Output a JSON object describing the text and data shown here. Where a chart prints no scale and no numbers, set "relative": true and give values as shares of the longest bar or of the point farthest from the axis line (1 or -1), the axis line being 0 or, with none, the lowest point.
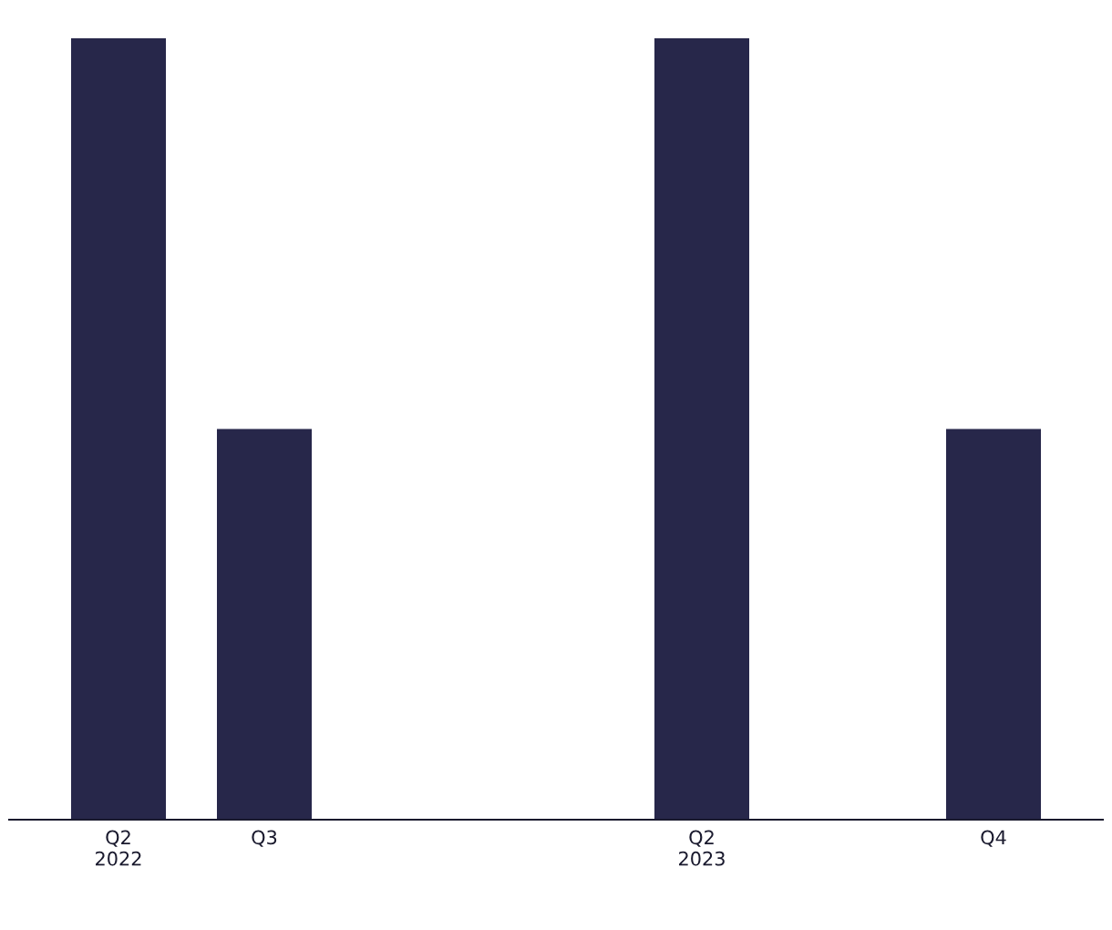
{
  "chart_data": {
    "type": "bar",
    "relative": true,
    "color": "#27274a",
    "categories": [
      "Q2\n2022",
      "Q3",
      null,
      null,
      "Q2\n2023",
      null,
      "Q4"
    ],
    "values": [
      1,
      0.5,
      null,
      null,
      1,
      null,
      0.5
    ]
  }
}
